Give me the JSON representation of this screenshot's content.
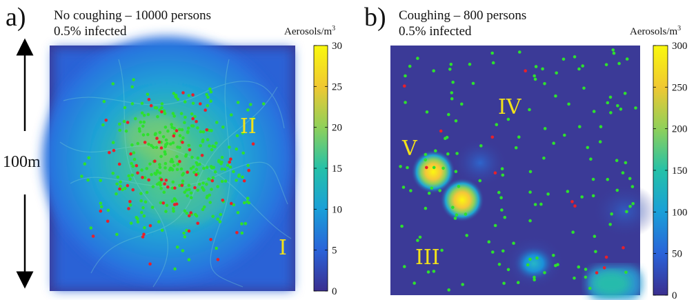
{
  "chart_data": [
    {
      "type": "heatmap",
      "panel_label": "a)",
      "title_lines": [
        "No coughing – 10000 persons",
        "0.5% infected"
      ],
      "colorbar": {
        "label": "Aerosols/m",
        "label_sup": "3",
        "min": 0,
        "max": 30,
        "ticks": [
          0,
          5,
          10,
          15,
          20,
          25,
          30
        ]
      },
      "region_labels": [
        "II",
        "I"
      ],
      "marker_colors": {
        "healthy": "#2ee02e",
        "infected": "#e8202a"
      }
    },
    {
      "type": "heatmap",
      "panel_label": "b)",
      "title_lines": [
        "Coughing – 800 persons",
        "0.5% infected"
      ],
      "colorbar": {
        "label": "Aerosols/m",
        "label_sup": "3",
        "min": 0,
        "max": 300,
        "ticks": [
          0,
          50,
          100,
          150,
          200,
          250,
          300
        ]
      },
      "region_labels": [
        "IV",
        "V",
        "III"
      ],
      "marker_colors": {
        "healthy": "#2ee02e",
        "infected": "#e8202a"
      }
    }
  ],
  "scale_label": "100m",
  "colormap": [
    "#3b2f8f",
    "#2a63d9",
    "#1a9fd8",
    "#25c1a8",
    "#8fd05a",
    "#f0c832",
    "#f9f80e"
  ]
}
